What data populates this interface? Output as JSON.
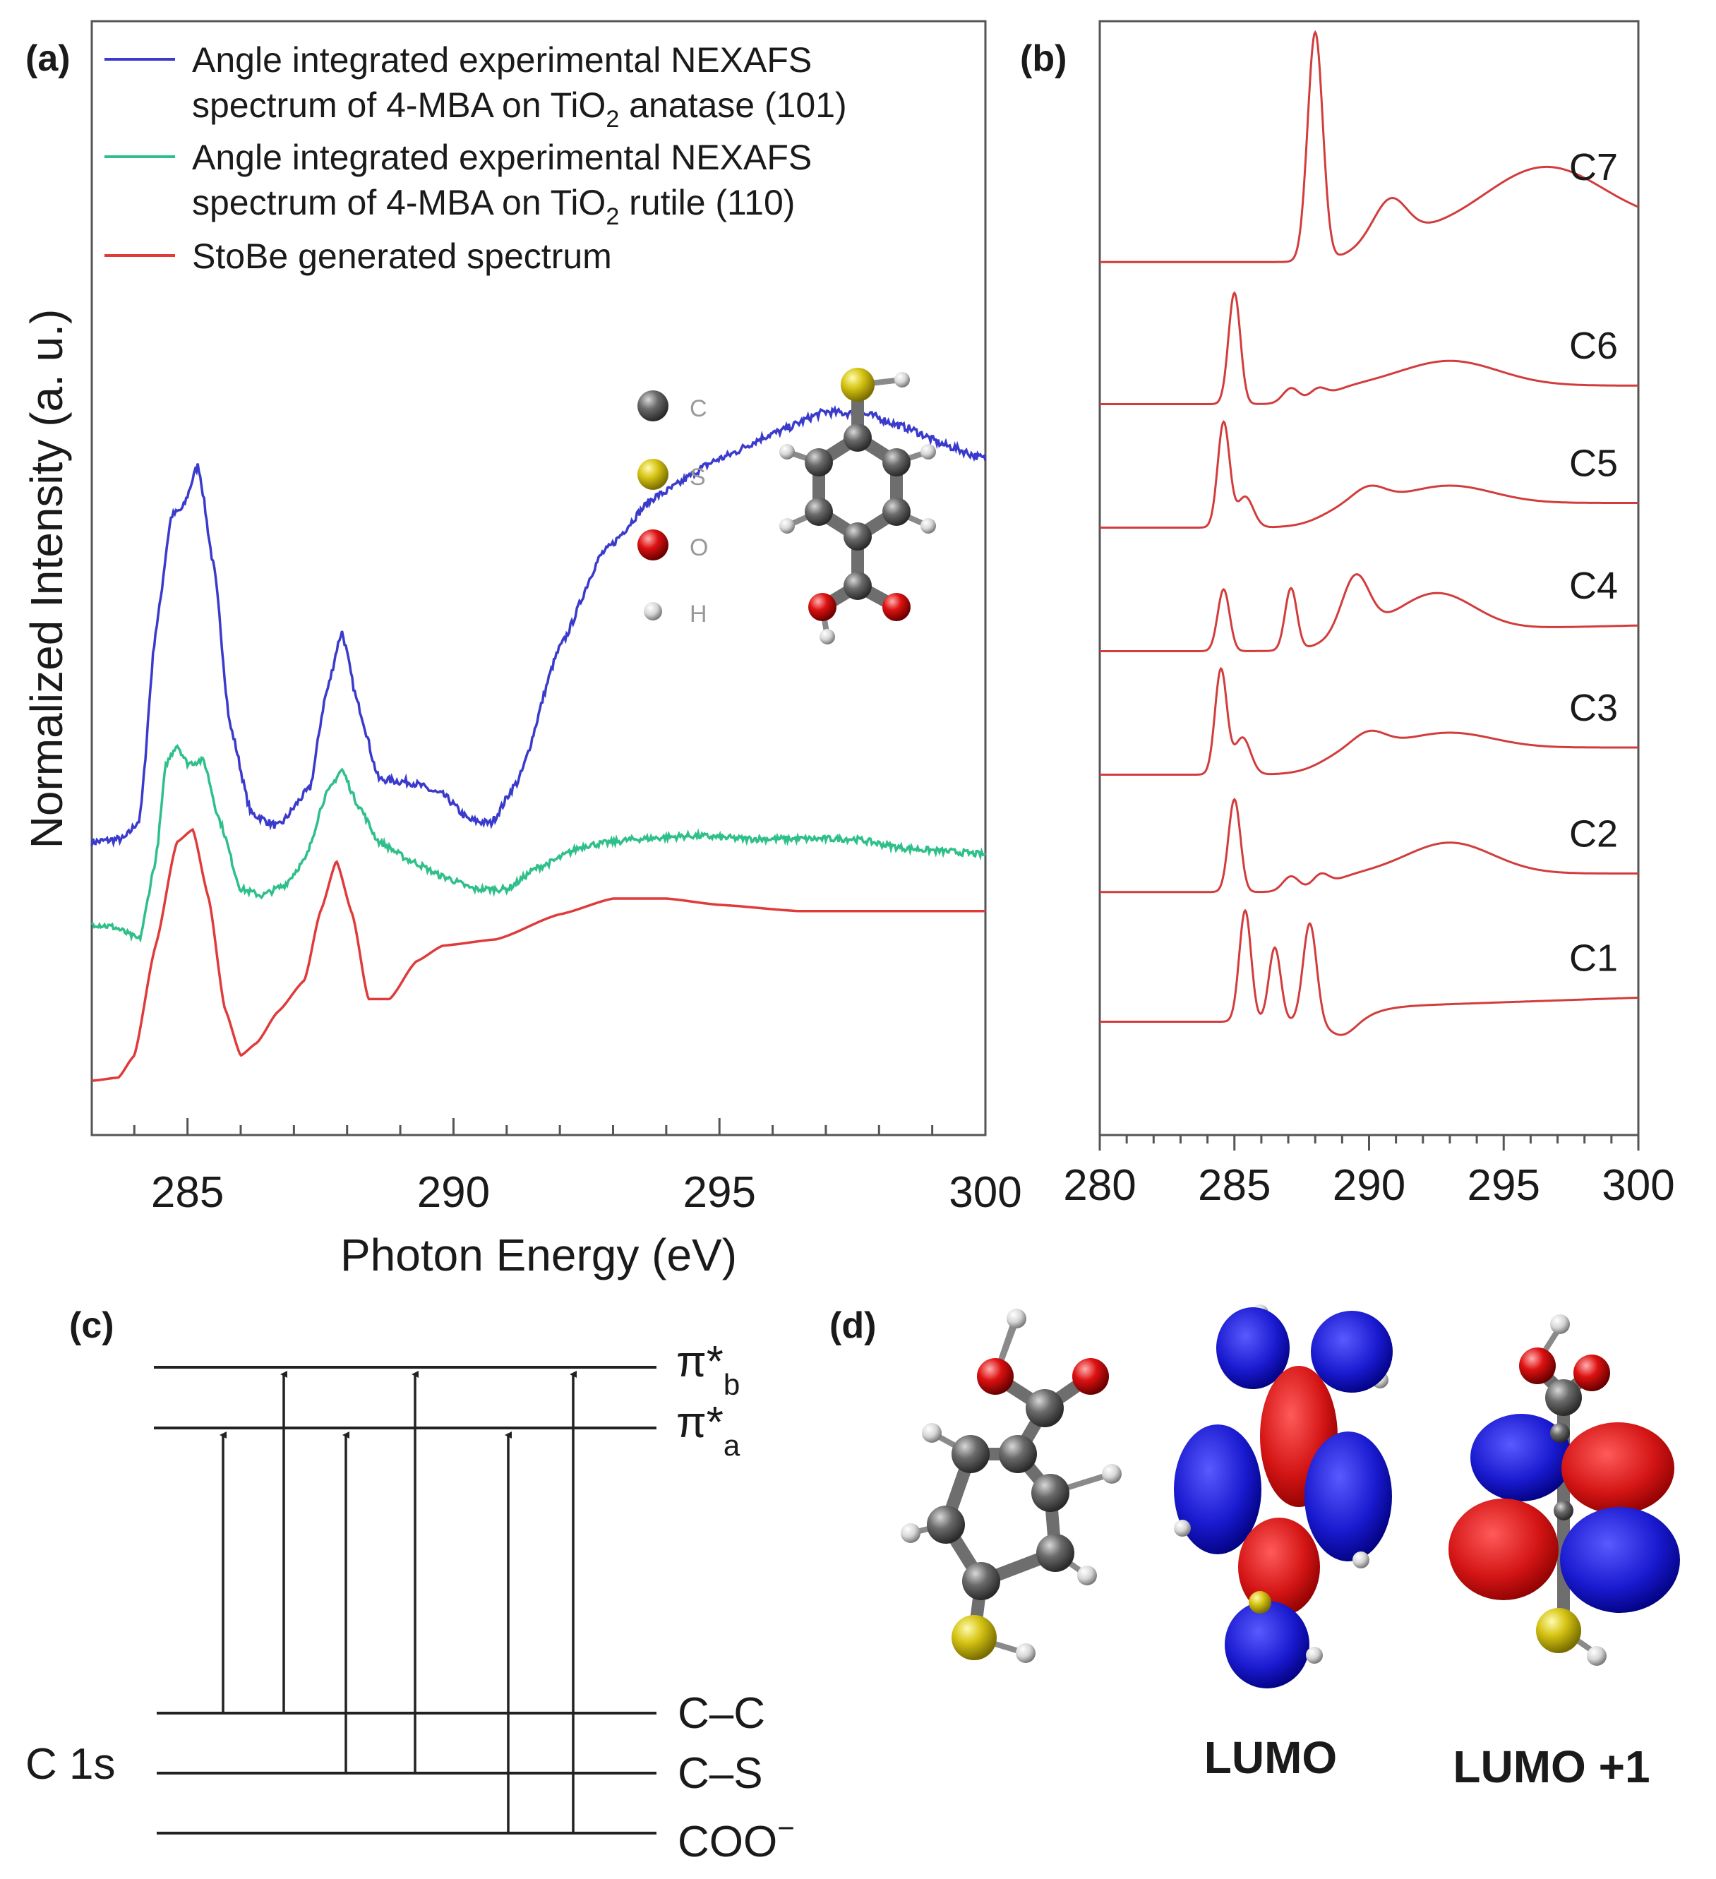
{
  "panels": {
    "a": {
      "letter": "(a)"
    },
    "b": {
      "letter": "(b)"
    },
    "c": {
      "letter": "(c)"
    },
    "d": {
      "letter": "(d)"
    }
  },
  "chart_data": [
    {
      "id": "a",
      "type": "line",
      "xlabel": "Photon Energy (eV)",
      "ylabel": "Normalized Intensity (a. u.)",
      "xlim": [
        283.2,
        300.0
      ],
      "xticks": [
        {
          "value": 285,
          "label": "285"
        },
        {
          "value": 290,
          "label": "290"
        },
        {
          "value": 295,
          "label": "295"
        },
        {
          "value": 300,
          "label": "300"
        }
      ],
      "legend": [
        {
          "lines": [
            "Angle integrated experimental NEXAFS",
            "spectrum of 4-MBA on TiO",
            "2",
            " anatase (101)"
          ],
          "color": "#3a3acc"
        },
        {
          "lines": [
            "Angle integrated experimental NEXAFS",
            "spectrum of 4-MBA on TiO",
            "2",
            " rutile (110)"
          ],
          "color": "#2fbf8a"
        },
        {
          "lines": [
            "StoBe generated spectrum"
          ],
          "color": "#e03a3a"
        }
      ],
      "series": [
        {
          "name": "Angle integrated experimental NEXAFS spectrum of 4-MBA on TiO2 anatase (101)",
          "color": "#3a3acc",
          "baseline": 0.0,
          "noise": 0.012,
          "points": [
            [
              283.2,
              0.78
            ],
            [
              283.8,
              0.79
            ],
            [
              284.1,
              0.85
            ],
            [
              284.4,
              1.45
            ],
            [
              284.7,
              1.82
            ],
            [
              284.9,
              1.84
            ],
            [
              285.2,
              1.98
            ],
            [
              285.5,
              1.65
            ],
            [
              285.8,
              1.15
            ],
            [
              286.2,
              0.87
            ],
            [
              286.7,
              0.83
            ],
            [
              287.3,
              0.95
            ],
            [
              287.6,
              1.25
            ],
            [
              287.9,
              1.45
            ],
            [
              288.2,
              1.22
            ],
            [
              288.6,
              0.98
            ],
            [
              289.2,
              0.97
            ],
            [
              289.8,
              0.93
            ],
            [
              290.3,
              0.85
            ],
            [
              290.7,
              0.84
            ],
            [
              291.2,
              0.97
            ],
            [
              292.0,
              1.4
            ],
            [
              292.8,
              1.7
            ],
            [
              293.8,
              1.88
            ],
            [
              295.0,
              2.0
            ],
            [
              296.0,
              2.08
            ],
            [
              297.0,
              2.15
            ],
            [
              297.8,
              2.14
            ],
            [
              298.5,
              2.1
            ],
            [
              299.3,
              2.04
            ],
            [
              300.0,
              2.0
            ]
          ]
        },
        {
          "name": "Angle integrated experimental NEXAFS spectrum of 4-MBA on TiO2 rutile (110)",
          "color": "#2fbf8a",
          "baseline": 0.0,
          "noise": 0.01,
          "points": [
            [
              283.2,
              0.52
            ],
            [
              283.6,
              0.51
            ],
            [
              284.1,
              0.47
            ],
            [
              284.4,
              0.72
            ],
            [
              284.6,
              1.03
            ],
            [
              284.8,
              1.09
            ],
            [
              285.0,
              1.03
            ],
            [
              285.3,
              1.04
            ],
            [
              285.6,
              0.85
            ],
            [
              286.0,
              0.63
            ],
            [
              286.4,
              0.61
            ],
            [
              286.8,
              0.64
            ],
            [
              287.2,
              0.72
            ],
            [
              287.6,
              0.93
            ],
            [
              287.9,
              1.01
            ],
            [
              288.2,
              0.9
            ],
            [
              288.6,
              0.78
            ],
            [
              289.2,
              0.72
            ],
            [
              289.8,
              0.67
            ],
            [
              290.4,
              0.63
            ],
            [
              291.0,
              0.63
            ],
            [
              291.6,
              0.7
            ],
            [
              292.5,
              0.77
            ],
            [
              293.5,
              0.79
            ],
            [
              294.5,
              0.8
            ],
            [
              295.5,
              0.79
            ],
            [
              296.5,
              0.79
            ],
            [
              297.5,
              0.79
            ],
            [
              298.5,
              0.76
            ],
            [
              299.3,
              0.75
            ],
            [
              300.0,
              0.74
            ]
          ]
        },
        {
          "name": "StoBe generated spectrum",
          "color": "#e03a3a",
          "baseline": 0.0,
          "noise": 0.0,
          "points": [
            [
              283.2,
              0.02
            ],
            [
              283.7,
              0.03
            ],
            [
              284.0,
              0.1
            ],
            [
              284.4,
              0.45
            ],
            [
              284.8,
              0.78
            ],
            [
              285.1,
              0.82
            ],
            [
              285.4,
              0.6
            ],
            [
              285.7,
              0.25
            ],
            [
              286.0,
              0.1
            ],
            [
              286.3,
              0.14
            ],
            [
              286.7,
              0.24
            ],
            [
              287.2,
              0.34
            ],
            [
              287.5,
              0.56
            ],
            [
              287.8,
              0.72
            ],
            [
              288.1,
              0.55
            ],
            [
              288.4,
              0.28
            ],
            [
              288.8,
              0.28
            ],
            [
              289.3,
              0.4
            ],
            [
              289.8,
              0.45
            ],
            [
              290.8,
              0.47
            ],
            [
              292.0,
              0.55
            ],
            [
              293.0,
              0.6
            ],
            [
              294.0,
              0.6
            ],
            [
              295.0,
              0.58
            ],
            [
              296.5,
              0.56
            ],
            [
              298.0,
              0.56
            ],
            [
              300.0,
              0.56
            ]
          ]
        }
      ]
    },
    {
      "id": "b",
      "type": "line",
      "xlim": [
        280,
        300
      ],
      "xticks": [
        {
          "value": 280,
          "label": "280"
        },
        {
          "value": 285,
          "label": "285"
        },
        {
          "value": 290,
          "label": "290"
        },
        {
          "value": 295,
          "label": "295"
        },
        {
          "value": 300,
          "label": "300"
        }
      ],
      "series": [
        {
          "name": "C7",
          "label": "C7",
          "color": "#d23c3c",
          "offset": 6.45,
          "peaks": [
            [
              288.0,
              1.85,
              0.28
            ],
            [
              290.8,
              0.3,
              0.6
            ],
            [
              296.5,
              0.5,
              2.2
            ]
          ],
          "edge": [
            289.5,
            0.2
          ],
          "tail": 0.4
        },
        {
          "name": "C6",
          "label": "C6",
          "color": "#d23c3c",
          "offset": 5.3,
          "peaks": [
            [
              285.0,
              0.9,
              0.22
            ],
            [
              287.1,
              0.12,
              0.3
            ],
            [
              288.1,
              0.08,
              0.3
            ],
            [
              293.0,
              0.2,
              1.8
            ]
          ],
          "edge": [
            288.5,
            0.15
          ],
          "tail": 0.0
        },
        {
          "name": "C5",
          "label": "C5",
          "color": "#d23c3c",
          "offset": 4.3,
          "peaks": [
            [
              284.6,
              0.85,
              0.22
            ],
            [
              285.4,
              0.25,
              0.3
            ],
            [
              290.0,
              0.12,
              0.6
            ],
            [
              293.0,
              0.14,
              1.6
            ]
          ],
          "edge": [
            288.3,
            0.2
          ],
          "tail": 0.0
        },
        {
          "name": "C4",
          "label": "C4",
          "color": "#d23c3c",
          "offset": 3.3,
          "peaks": [
            [
              284.6,
              0.5,
              0.22
            ],
            [
              287.1,
              0.5,
              0.22
            ],
            [
              289.5,
              0.45,
              0.5
            ],
            [
              292.5,
              0.3,
              1.4
            ]
          ],
          "edge": [
            288.4,
            0.15
          ],
          "tail": 0.2
        },
        {
          "name": "C3",
          "label": "C3",
          "color": "#d23c3c",
          "offset": 2.3,
          "peaks": [
            [
              284.5,
              0.85,
              0.22
            ],
            [
              285.3,
              0.3,
              0.3
            ],
            [
              290.0,
              0.12,
              0.6
            ],
            [
              293.0,
              0.12,
              1.6
            ]
          ],
          "edge": [
            288.3,
            0.22
          ],
          "tail": 0.0
        },
        {
          "name": "C2",
          "label": "C2",
          "color": "#d23c3c",
          "offset": 1.35,
          "peaks": [
            [
              285.0,
              0.75,
              0.22
            ],
            [
              287.1,
              0.12,
              0.3
            ],
            [
              288.2,
              0.1,
              0.3
            ],
            [
              293.0,
              0.25,
              1.6
            ]
          ],
          "edge": [
            288.6,
            0.15
          ],
          "tail": 0.0
        },
        {
          "name": "C1",
          "label": "C1",
          "color": "#d23c3c",
          "offset": 0.3,
          "peaks": [
            [
              285.4,
              0.9,
              0.22
            ],
            [
              286.5,
              0.6,
              0.22
            ],
            [
              287.8,
              0.8,
              0.25
            ]
          ],
          "dip": [
            289.0,
            -0.12,
            0.5
          ],
          "edge": [
            290.0,
            0.12
          ],
          "tail": 0.3
        }
      ]
    }
  ],
  "molecule_legend": [
    {
      "element": "C",
      "color": "#555555"
    },
    {
      "element": "S",
      "color": "#d6c414"
    },
    {
      "element": "O",
      "color": "#dd1111"
    },
    {
      "element": "H",
      "color": "#dddddd"
    }
  ],
  "energy_diagram": {
    "core_label": "C 1s",
    "upper_levels": [
      {
        "id": "pi_b",
        "symbol": "π*",
        "sub": "b"
      },
      {
        "id": "pi_a",
        "symbol": "π*",
        "sub": "a"
      }
    ],
    "core_levels": [
      {
        "id": "cc",
        "label": "C–C"
      },
      {
        "id": "cs",
        "label": "C–S"
      },
      {
        "id": "coo",
        "label": "COO",
        "sup": "−"
      }
    ],
    "transitions": [
      {
        "from": "cc",
        "to": "pi_a"
      },
      {
        "from": "cc",
        "to": "pi_b"
      },
      {
        "from": "cs",
        "to": "pi_a"
      },
      {
        "from": "cs",
        "to": "pi_b"
      },
      {
        "from": "coo",
        "to": "pi_a"
      },
      {
        "from": "coo",
        "to": "pi_b"
      }
    ]
  },
  "orbitals": {
    "labels": [
      "LUMO",
      "LUMO +1"
    ],
    "colors": {
      "positive": "#d41515",
      "negative": "#1a1ad0"
    }
  }
}
